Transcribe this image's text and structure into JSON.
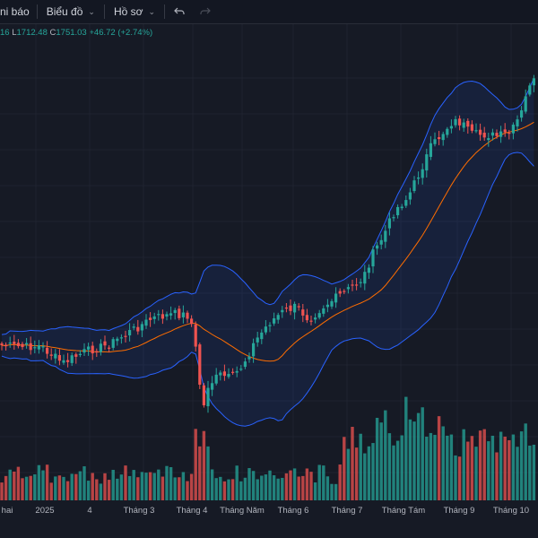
{
  "toolbar": {
    "alerts_label": "ni báo",
    "chart_label": "Biểu đồ",
    "profile_label": "Hồ sơ",
    "undo_icon": "undo-icon",
    "redo_icon": "redo-icon"
  },
  "ohlc": {
    "open_tail": "16",
    "low_key": "L",
    "low": "1712.48",
    "close_key": "C",
    "close": "1751.03",
    "change": "+46.72 (+2.74%)"
  },
  "colors": {
    "background": "#161a25",
    "up": "#26a69a",
    "down": "#ef5350",
    "bb_band": "#2962ff",
    "bb_basis": "#ff6d00"
  },
  "x_axis": {
    "labels": [
      "hai",
      "2025",
      "4",
      "Tháng 3",
      "Tháng 4",
      "Tháng Năm",
      "Tháng 6",
      "Tháng 7",
      "Tháng Tám",
      "Tháng 9",
      "Tháng 10"
    ]
  },
  "chart_data": {
    "type": "candlestick",
    "indicators": [
      "Bollinger Bands",
      "Volume"
    ],
    "grid": true,
    "x": [
      "hai",
      "2025",
      "4",
      "Tháng 3",
      "Tháng 4",
      "Tháng Năm",
      "Tháng 6",
      "Tháng 7",
      "Tháng Tám",
      "Tháng 9",
      "Tháng 10"
    ],
    "close_approx": [
      1250,
      1235,
      1265,
      1315,
      1180,
      1290,
      1330,
      1410,
      1590,
      1660,
      1680
    ],
    "last_close": 1751.03,
    "last_low": 1712.48,
    "last_change": 46.72,
    "last_change_pct": 2.74
  }
}
